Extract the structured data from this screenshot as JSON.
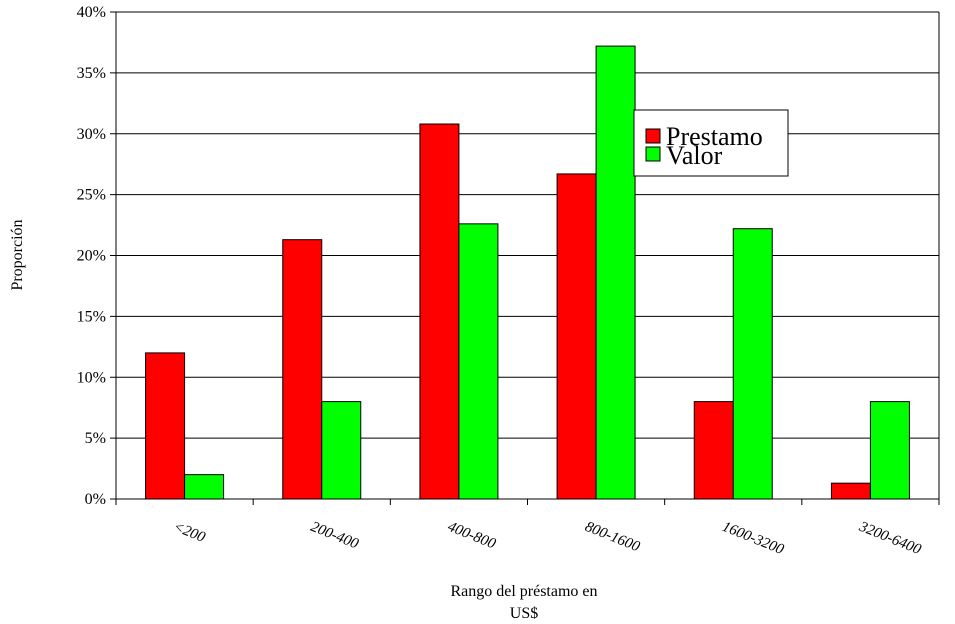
{
  "chart_data": {
    "type": "bar",
    "categories": [
      "<200",
      "200-400",
      "400-800",
      "800-1600",
      "1600-3200",
      "3200-6400"
    ],
    "series": [
      {
        "name": "Prestamo",
        "color": "#ff0000",
        "values": [
          12.0,
          21.3,
          30.8,
          26.7,
          8.0,
          1.3
        ]
      },
      {
        "name": "Valor",
        "color": "#00ff00",
        "values": [
          2.0,
          8.0,
          22.6,
          37.2,
          22.2,
          8.0
        ]
      }
    ],
    "yticks": [
      "0%",
      "5%",
      "10%",
      "15%",
      "20%",
      "25%",
      "30%",
      "35%",
      "40%"
    ],
    "ylim": [
      0,
      40
    ],
    "ylabel": "Proporción",
    "xlabel_line1": "Rango del préstamo en",
    "xlabel_line2": "US$",
    "grid": true,
    "legend_position": "top-right"
  }
}
